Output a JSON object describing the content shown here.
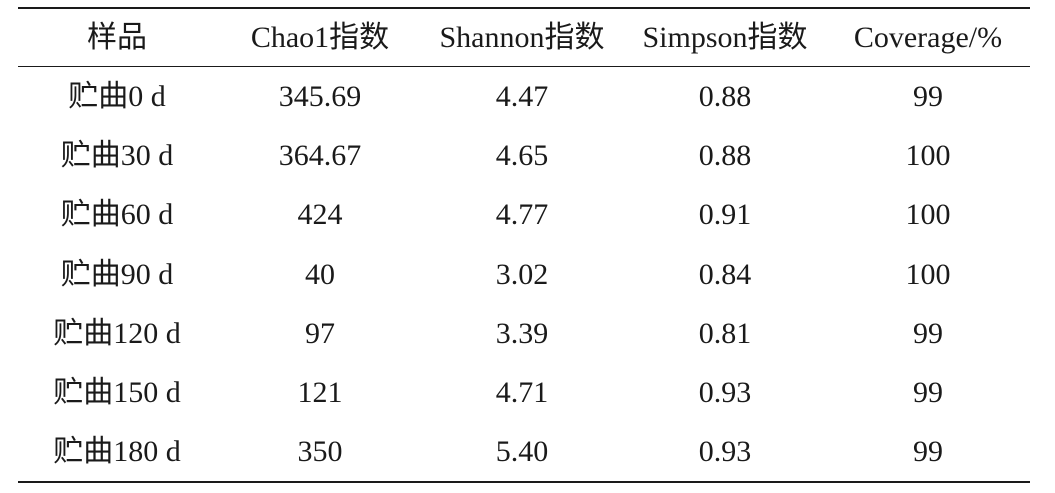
{
  "table": {
    "header": [
      "样品",
      "Chao1指数",
      "Shannon指数",
      "Simpson指数",
      "Coverage/%"
    ],
    "rows": [
      [
        "贮曲0 d",
        "345.69",
        "4.47",
        "0.88",
        "99"
      ],
      [
        "贮曲30 d",
        "364.67",
        "4.65",
        "0.88",
        "100"
      ],
      [
        "贮曲60 d",
        "424",
        "4.77",
        "0.91",
        "100"
      ],
      [
        "贮曲90 d",
        "40",
        "3.02",
        "0.84",
        "100"
      ],
      [
        "贮曲120 d",
        "97",
        "3.39",
        "0.81",
        "99"
      ],
      [
        "贮曲150 d",
        "121",
        "4.71",
        "0.93",
        "99"
      ],
      [
        "贮曲180 d",
        "350",
        "5.40",
        "0.93",
        "99"
      ]
    ]
  }
}
